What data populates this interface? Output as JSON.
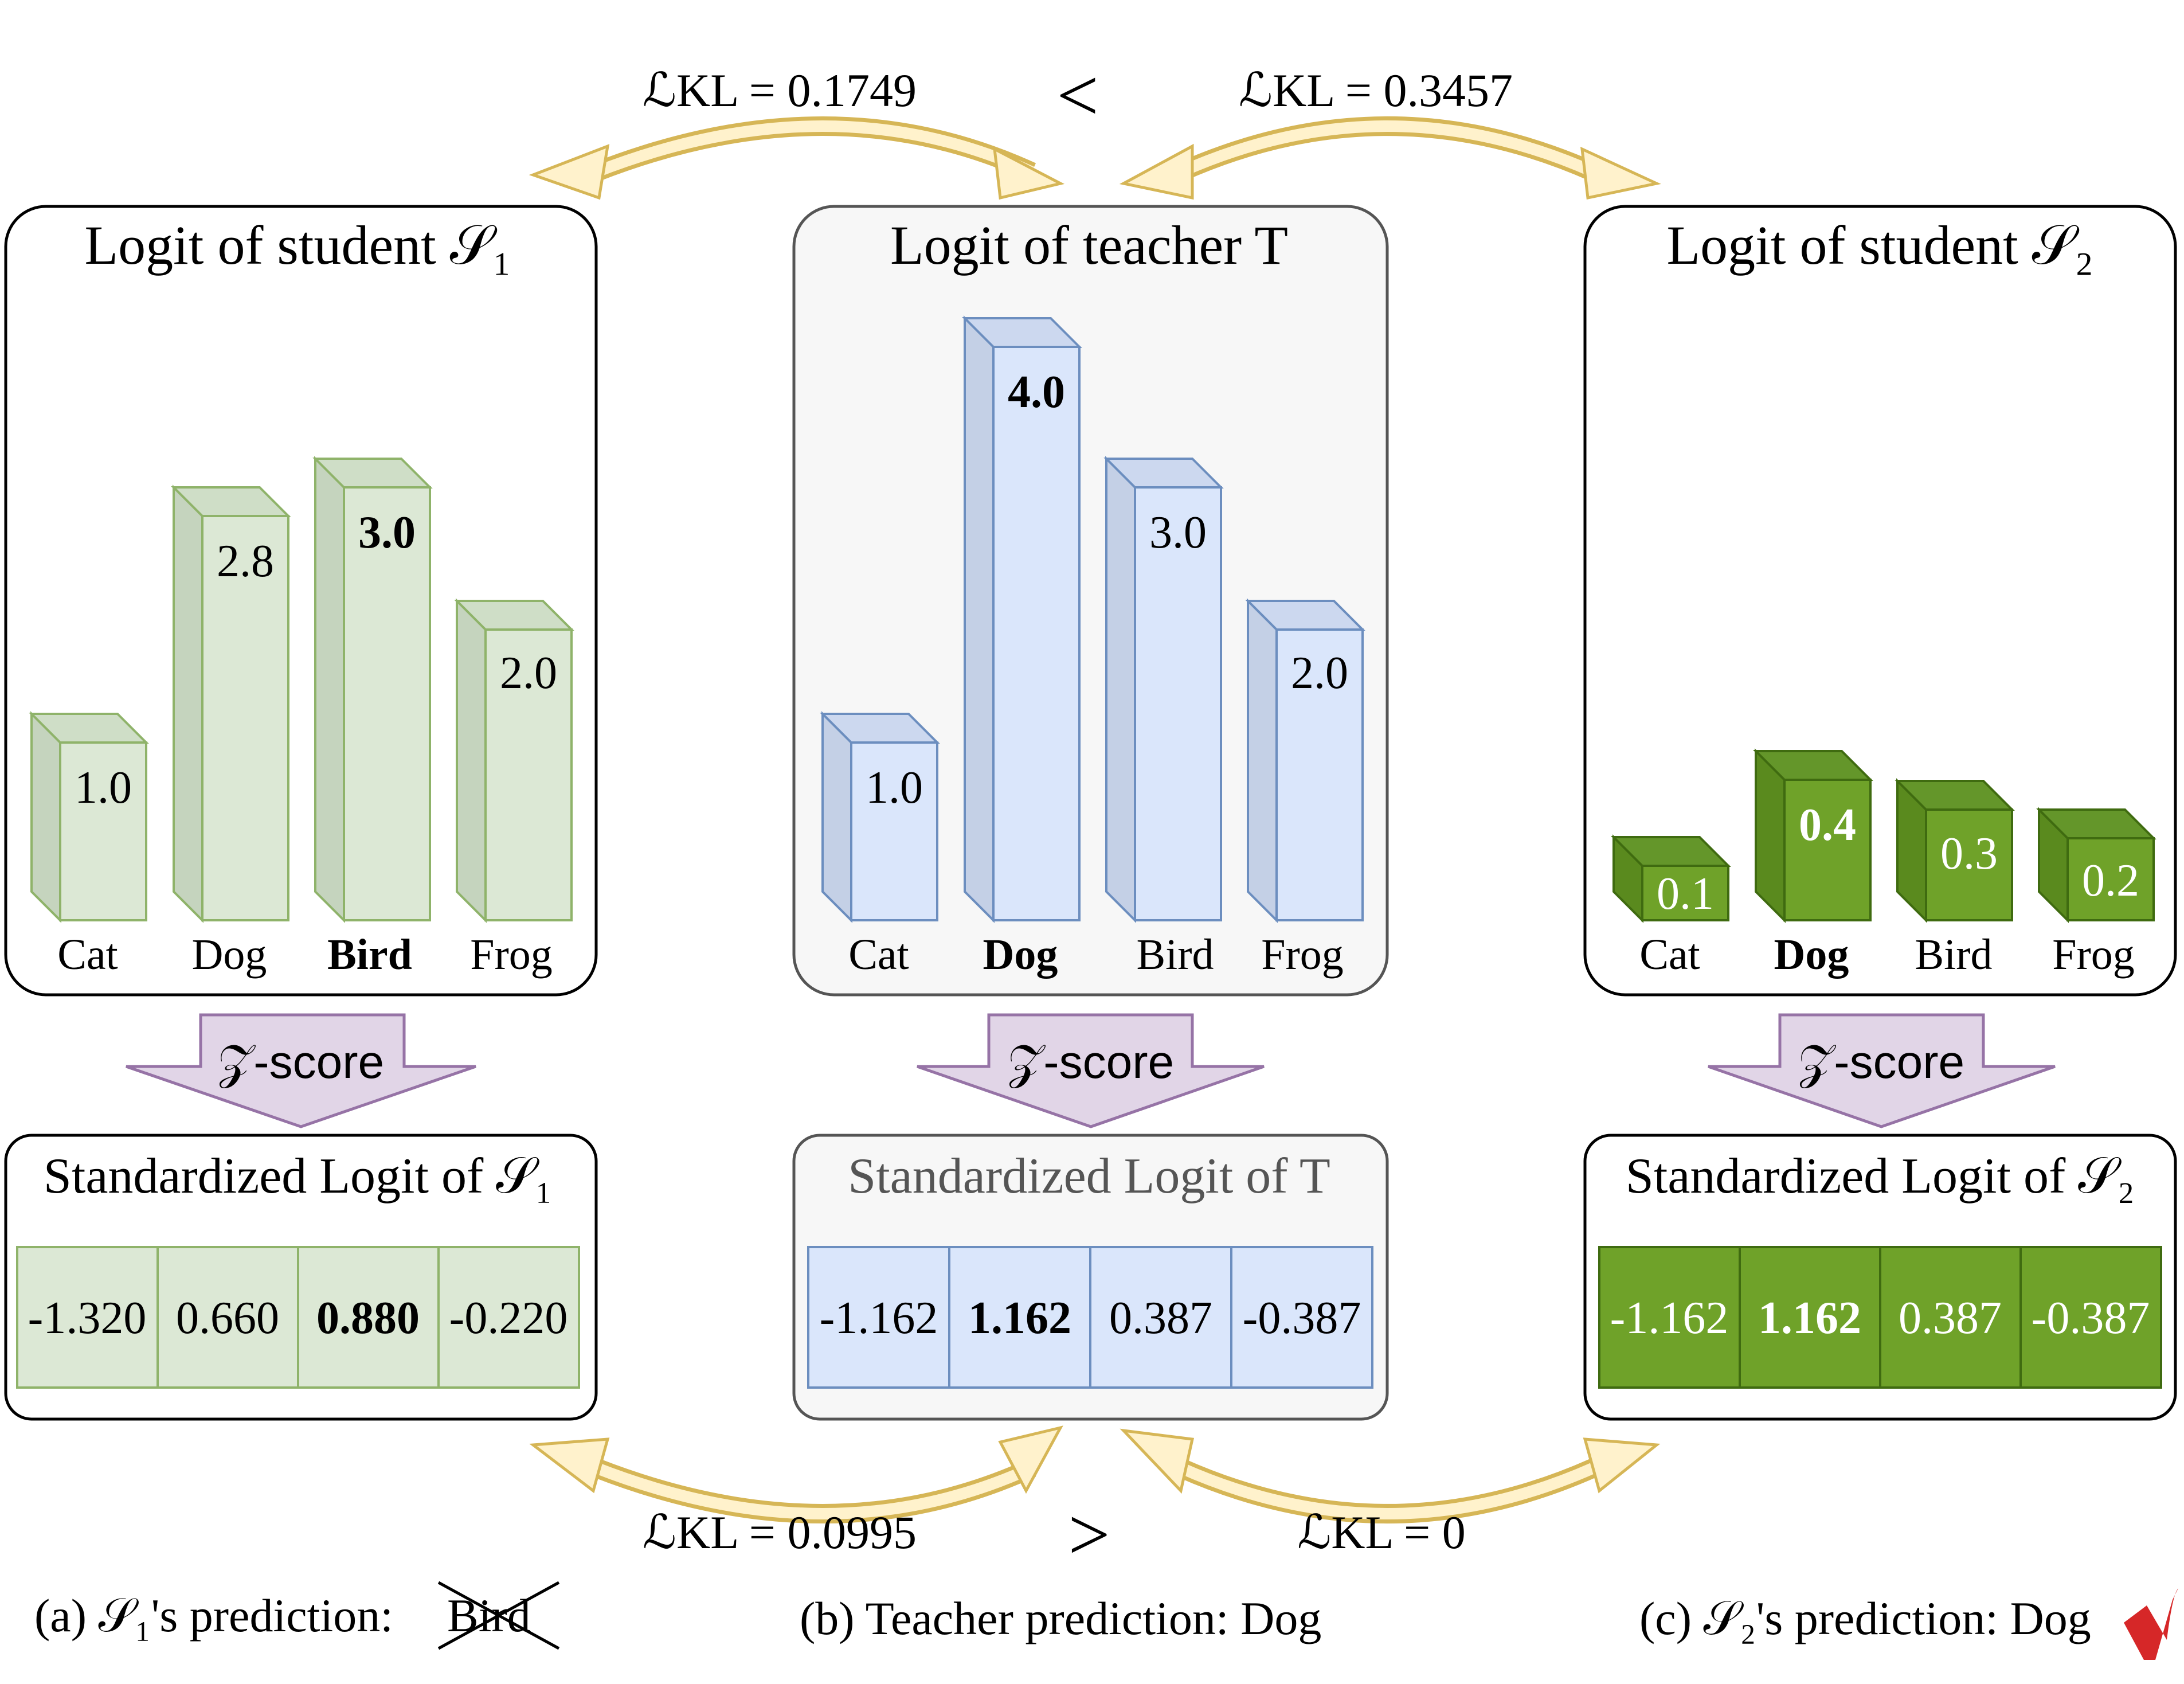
{
  "comparisons": {
    "top_left": "ℒKL = 0.1749",
    "top_symbol": "<",
    "top_right": "ℒKL = 0.3457",
    "bottom_left": "ℒKL = 0.0995",
    "bottom_symbol": ">",
    "bottom_right": "ℒKL = 0"
  },
  "colors": {
    "green_light_fill": "#dce8d5",
    "green_light_side": "#c5d4be",
    "green_light_stroke": "#8fb36a",
    "blue_fill": "#dae6fb",
    "blue_side": "#c4d0e6",
    "blue_stroke": "#6c8ebf",
    "green_dark_fill": "#6fa229",
    "green_dark_side": "#5a8a1e",
    "green_dark_stroke": "#3f6b10",
    "teacher_bg": "#f7f7f7",
    "arrow_yellow": "#fff2cc",
    "arrow_yellow_stroke": "#d6b656",
    "zscore_fill": "#e1d5e7",
    "zscore_stroke": "#9673a6"
  },
  "panels": [
    {
      "id": "student1",
      "title": "Logit of student 𝒮₁",
      "theme": "green_light",
      "predicted_index": 2,
      "categories": [
        "Cat",
        "Dog",
        "Bird",
        "Frog"
      ],
      "logits": [
        "1.0",
        "2.8",
        "3.0",
        "2.0"
      ],
      "zscore_label": "𝒵-score",
      "std_title": "Standardized Logit of 𝒮₁",
      "std_values": [
        "-1.320",
        "0.660",
        "0.880",
        "-0.220"
      ],
      "caption": "(a) 𝒮₁'s prediction:",
      "caption_prediction": "Bird",
      "caption_mark": "✗"
    },
    {
      "id": "teacher",
      "title": "Logit of teacher T",
      "theme": "blue",
      "predicted_index": 1,
      "categories": [
        "Cat",
        "Dog",
        "Bird",
        "Frog"
      ],
      "logits": [
        "1.0",
        "4.0",
        "3.0",
        "2.0"
      ],
      "zscore_label": "𝒵-score",
      "std_title": "Standardized Logit of T",
      "std_values": [
        "-1.162",
        "1.162",
        "0.387",
        "-0.387"
      ],
      "caption": "(b) Teacher prediction: Dog",
      "caption_prediction": "",
      "caption_mark": ""
    },
    {
      "id": "student2",
      "title": "Logit of student 𝒮₂",
      "theme": "green_dark",
      "predicted_index": 1,
      "categories": [
        "Cat",
        "Dog",
        "Bird",
        "Frog"
      ],
      "logits": [
        "0.1",
        "0.4",
        "0.3",
        "0.2"
      ],
      "zscore_label": "𝒵-score",
      "std_title": "Standardized Logit of 𝒮₂",
      "std_values": [
        "-1.162",
        "1.162",
        "0.387",
        "-0.387"
      ],
      "caption": "(c) 𝒮₂'s prediction: Dog",
      "caption_prediction": "",
      "caption_mark": "✔"
    }
  ]
}
